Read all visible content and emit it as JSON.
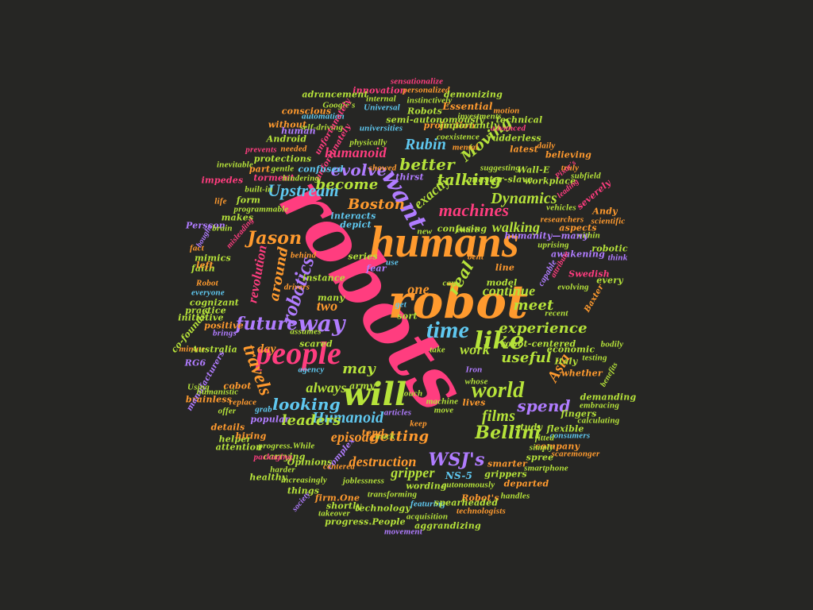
{
  "palette": {
    "background": "#262624",
    "pink": "#ff3d7f",
    "orange": "#ff9a2e",
    "green": "#b6e33a",
    "blue": "#5fc8f0",
    "violet": "#b07cff",
    "red": "#ff4f63"
  },
  "words": [
    {
      "text": "robots",
      "color": "pink"
    },
    {
      "text": "humans",
      "color": "orange"
    },
    {
      "text": "robot",
      "color": "orange"
    },
    {
      "text": "people",
      "color": "pink"
    },
    {
      "text": "will",
      "color": "green"
    },
    {
      "text": "time",
      "color": "blue"
    },
    {
      "text": "like",
      "color": "green"
    },
    {
      "text": "world",
      "color": "green"
    },
    {
      "text": "want",
      "color": "violet"
    },
    {
      "text": "machines",
      "color": "pink"
    },
    {
      "text": "way",
      "color": "violet"
    },
    {
      "text": "robotics",
      "color": "violet"
    },
    {
      "text": "future",
      "color": "violet"
    },
    {
      "text": "travels",
      "color": "orange"
    },
    {
      "text": "evolve",
      "color": "violet"
    },
    {
      "text": "Upstream",
      "color": "blue"
    },
    {
      "text": "Jason",
      "color": "orange"
    },
    {
      "text": "revolution",
      "color": "pink"
    },
    {
      "text": "around",
      "color": "orange"
    },
    {
      "text": "two",
      "color": "orange"
    },
    {
      "text": "Boston",
      "color": "orange"
    },
    {
      "text": "Dynamics",
      "color": "green"
    },
    {
      "text": "talking",
      "color": "green"
    },
    {
      "text": "exactly",
      "color": "green"
    },
    {
      "text": "better",
      "color": "green"
    },
    {
      "text": "Rubin",
      "color": "blue"
    },
    {
      "text": "Moving",
      "color": "green"
    },
    {
      "text": "humanoid",
      "color": "pink"
    },
    {
      "text": "become",
      "color": "green"
    },
    {
      "text": "walking",
      "color": "green"
    },
    {
      "text": "meet",
      "color": "green"
    },
    {
      "text": "continue",
      "color": "green"
    },
    {
      "text": "real",
      "color": "green"
    },
    {
      "text": "one",
      "color": "orange"
    },
    {
      "text": "experience",
      "color": "green"
    },
    {
      "text": "work",
      "color": "green"
    },
    {
      "text": "useful",
      "color": "green"
    },
    {
      "text": "Asia",
      "color": "orange"
    },
    {
      "text": "spend",
      "color": "violet"
    },
    {
      "text": "films",
      "color": "green"
    },
    {
      "text": "Bellini",
      "color": "green"
    },
    {
      "text": "always",
      "color": "green"
    },
    {
      "text": "looking",
      "color": "blue"
    },
    {
      "text": "Humanoid",
      "color": "blue"
    },
    {
      "text": "leaders",
      "color": "green"
    },
    {
      "text": "episode",
      "color": "orange"
    },
    {
      "text": "getting",
      "color": "orange"
    },
    {
      "text": "destruction",
      "color": "orange"
    },
    {
      "text": "WSJ's",
      "color": "violet"
    },
    {
      "text": "gripper",
      "color": "green"
    },
    {
      "text": "may",
      "color": "green"
    },
    {
      "text": "day",
      "color": "orange"
    },
    {
      "text": "NS-5",
      "color": "blue"
    },
    {
      "text": "sensationalize",
      "color": "pink"
    },
    {
      "text": "innovation",
      "color": "pink"
    },
    {
      "text": "personalized",
      "color": "orange"
    },
    {
      "text": "adrancement",
      "color": "green"
    },
    {
      "text": "internal",
      "color": "green"
    },
    {
      "text": "demonizing",
      "color": "green"
    },
    {
      "text": "instinctively",
      "color": "green"
    },
    {
      "text": "Essential",
      "color": "orange"
    },
    {
      "text": "motion",
      "color": "orange"
    },
    {
      "text": "conscious",
      "color": "orange"
    },
    {
      "text": "Universal",
      "color": "blue"
    },
    {
      "text": "Robots",
      "color": "green"
    },
    {
      "text": "Google's",
      "color": "green"
    },
    {
      "text": "semi-autonomously",
      "color": "green"
    },
    {
      "text": "investments",
      "color": "green"
    },
    {
      "text": "technical",
      "color": "green"
    },
    {
      "text": "automation",
      "color": "blue"
    },
    {
      "text": "projection",
      "color": "orange"
    },
    {
      "text": "advanced",
      "color": "pink"
    },
    {
      "text": "without",
      "color": "orange"
    },
    {
      "text": "universities",
      "color": "blue"
    },
    {
      "text": "importantly",
      "color": "green"
    },
    {
      "text": "self-driving",
      "color": "green"
    },
    {
      "text": "human",
      "color": "violet"
    },
    {
      "text": "coexistence",
      "color": "green"
    },
    {
      "text": "Android",
      "color": "green"
    },
    {
      "text": "mental",
      "color": "orange"
    },
    {
      "text": "rudderless",
      "color": "green"
    },
    {
      "text": "physically",
      "color": "green"
    },
    {
      "text": "latest",
      "color": "orange"
    },
    {
      "text": "daily",
      "color": "orange"
    },
    {
      "text": "believing",
      "color": "orange"
    },
    {
      "text": "needed",
      "color": "orange"
    },
    {
      "text": "unfortunately",
      "color": "pink"
    },
    {
      "text": "prevents",
      "color": "pink"
    },
    {
      "text": "protections",
      "color": "green"
    },
    {
      "text": "suggesting",
      "color": "green"
    },
    {
      "text": "master-slave",
      "color": "green"
    },
    {
      "text": "inevitable",
      "color": "green"
    },
    {
      "text": "part",
      "color": "orange"
    },
    {
      "text": "gentle",
      "color": "green"
    },
    {
      "text": "confused",
      "color": "blue"
    },
    {
      "text": "showed",
      "color": "orange"
    },
    {
      "text": "Wall-E",
      "color": "green"
    },
    {
      "text": "truly",
      "color": "orange"
    },
    {
      "text": "torment",
      "color": "pink"
    },
    {
      "text": "hindering",
      "color": "green"
    },
    {
      "text": "workplace",
      "color": "green"
    },
    {
      "text": "subfield",
      "color": "green"
    },
    {
      "text": "impedes",
      "color": "pink"
    },
    {
      "text": "built-in",
      "color": "green"
    },
    {
      "text": "thirst",
      "color": "violet"
    },
    {
      "text": "Pixar's",
      "color": "pink"
    },
    {
      "text": "severely",
      "color": "pink"
    },
    {
      "text": "life",
      "color": "orange"
    },
    {
      "text": "form",
      "color": "green"
    },
    {
      "text": "programmable",
      "color": "green"
    },
    {
      "text": "interacts",
      "color": "blue"
    },
    {
      "text": "vehicles",
      "color": "green"
    },
    {
      "text": "Andy",
      "color": "orange"
    },
    {
      "text": "scientific",
      "color": "orange"
    },
    {
      "text": "depict",
      "color": "blue"
    },
    {
      "text": "researchers",
      "color": "orange"
    },
    {
      "text": "aspects",
      "color": "orange"
    },
    {
      "text": "entire",
      "color": "green"
    },
    {
      "text": "confusing",
      "color": "green"
    },
    {
      "text": "within",
      "color": "green"
    },
    {
      "text": "humanity—many",
      "color": "violet"
    },
    {
      "text": "uprising",
      "color": "green"
    },
    {
      "text": "robotic",
      "color": "green"
    },
    {
      "text": "fact",
      "color": "orange"
    },
    {
      "text": "mimics",
      "color": "green"
    },
    {
      "text": "behind",
      "color": "orange"
    },
    {
      "text": "series",
      "color": "green"
    },
    {
      "text": "new",
      "color": "green"
    },
    {
      "text": "awakening",
      "color": "violet"
    },
    {
      "text": "think",
      "color": "violet"
    },
    {
      "text": "faith",
      "color": "green"
    },
    {
      "text": "use",
      "color": "blue"
    },
    {
      "text": "fear",
      "color": "violet"
    },
    {
      "text": "bent",
      "color": "orange"
    },
    {
      "text": "line",
      "color": "orange"
    },
    {
      "text": "attribute",
      "color": "pink"
    },
    {
      "text": "Swedish",
      "color": "pink"
    },
    {
      "text": "Robot",
      "color": "orange"
    },
    {
      "text": "instance",
      "color": "green"
    },
    {
      "text": "can",
      "color": "green"
    },
    {
      "text": "model",
      "color": "green"
    },
    {
      "text": "capable",
      "color": "violet"
    },
    {
      "text": "every",
      "color": "green"
    },
    {
      "text": "everyone",
      "color": "blue"
    },
    {
      "text": "cognizant",
      "color": "green"
    },
    {
      "text": "drivers",
      "color": "orange"
    },
    {
      "text": "many",
      "color": "green"
    },
    {
      "text": "evolving",
      "color": "green"
    },
    {
      "text": "practice",
      "color": "green"
    },
    {
      "text": "get",
      "color": "blue"
    },
    {
      "text": "sort",
      "color": "green"
    },
    {
      "text": "recent",
      "color": "green"
    },
    {
      "text": "initiative",
      "color": "green"
    },
    {
      "text": "brings",
      "color": "violet"
    },
    {
      "text": "positive",
      "color": "orange"
    },
    {
      "text": "assumes",
      "color": "green"
    },
    {
      "text": "robot-centered",
      "color": "green"
    },
    {
      "text": "minute",
      "color": "orange"
    },
    {
      "text": "scared",
      "color": "green"
    },
    {
      "text": "take",
      "color": "green"
    },
    {
      "text": "economic",
      "color": "green"
    },
    {
      "text": "bodily",
      "color": "green"
    },
    {
      "text": "Australia",
      "color": "green"
    },
    {
      "text": "agency",
      "color": "blue"
    },
    {
      "text": "Italy",
      "color": "green"
    },
    {
      "text": "testing",
      "color": "green"
    },
    {
      "text": "whether",
      "color": "orange"
    },
    {
      "text": "Iron",
      "color": "violet"
    },
    {
      "text": "army",
      "color": "green"
    },
    {
      "text": "whose",
      "color": "green"
    },
    {
      "text": "brainless",
      "color": "orange"
    },
    {
      "text": "replace",
      "color": "orange"
    },
    {
      "text": "manufacturers",
      "color": "violet"
    },
    {
      "text": "touch",
      "color": "green"
    },
    {
      "text": "demanding",
      "color": "green"
    },
    {
      "text": "embracing",
      "color": "green"
    },
    {
      "text": "details",
      "color": "orange"
    },
    {
      "text": "grab",
      "color": "blue"
    },
    {
      "text": "popular",
      "color": "violet"
    },
    {
      "text": "machine",
      "color": "green"
    },
    {
      "text": "lives",
      "color": "orange"
    },
    {
      "text": "move",
      "color": "green"
    },
    {
      "text": "fingers",
      "color": "green"
    },
    {
      "text": "calculating",
      "color": "green"
    },
    {
      "text": "flexible",
      "color": "green"
    },
    {
      "text": "offer",
      "color": "green"
    },
    {
      "text": "helper",
      "color": "green"
    },
    {
      "text": "articles",
      "color": "violet"
    },
    {
      "text": "hiring",
      "color": "orange"
    },
    {
      "text": "keep",
      "color": "orange"
    },
    {
      "text": "study",
      "color": "green"
    },
    {
      "text": "consumers",
      "color": "blue"
    },
    {
      "text": "attention",
      "color": "green"
    },
    {
      "text": "progress.While",
      "color": "green"
    },
    {
      "text": "carrying",
      "color": "green"
    },
    {
      "text": "truck",
      "color": "green"
    },
    {
      "text": "tend",
      "color": "orange"
    },
    {
      "text": "fitted",
      "color": "green"
    },
    {
      "text": "company",
      "color": "orange"
    },
    {
      "text": "packaging",
      "color": "pink"
    },
    {
      "text": "Opinions",
      "color": "green"
    },
    {
      "text": "simply",
      "color": "green"
    },
    {
      "text": "spree",
      "color": "green"
    },
    {
      "text": "scaremonger",
      "color": "orange"
    },
    {
      "text": "healthy",
      "color": "green"
    },
    {
      "text": "harder",
      "color": "green"
    },
    {
      "text": "complex",
      "color": "violet"
    },
    {
      "text": "centered",
      "color": "orange"
    },
    {
      "text": "smarter",
      "color": "orange"
    },
    {
      "text": "smartphone",
      "color": "green"
    },
    {
      "text": "grippers",
      "color": "green"
    },
    {
      "text": "increasingly",
      "color": "green"
    },
    {
      "text": "things",
      "color": "green"
    },
    {
      "text": "joblessness",
      "color": "green"
    },
    {
      "text": "wording",
      "color": "green"
    },
    {
      "text": "autonomously",
      "color": "green"
    },
    {
      "text": "departed",
      "color": "orange"
    },
    {
      "text": "society",
      "color": "violet"
    },
    {
      "text": "firm.One",
      "color": "orange"
    },
    {
      "text": "transforming",
      "color": "green"
    },
    {
      "text": "Robot's",
      "color": "orange"
    },
    {
      "text": "handles",
      "color": "green"
    },
    {
      "text": "shortly",
      "color": "green"
    },
    {
      "text": "featuring",
      "color": "blue"
    },
    {
      "text": "spearheaded",
      "color": "green"
    },
    {
      "text": "takeover",
      "color": "green"
    },
    {
      "text": "technology",
      "color": "green"
    },
    {
      "text": "technologists",
      "color": "orange"
    },
    {
      "text": "progress.People",
      "color": "green"
    },
    {
      "text": "acquisition",
      "color": "green"
    },
    {
      "text": "aggrandizing",
      "color": "green"
    },
    {
      "text": "movement",
      "color": "violet"
    },
    {
      "text": "cobot",
      "color": "orange"
    },
    {
      "text": "humanistic",
      "color": "green"
    },
    {
      "text": "Persson",
      "color": "violet"
    },
    {
      "text": "bought",
      "color": "violet"
    },
    {
      "text": "makes",
      "color": "green"
    },
    {
      "text": "leading",
      "color": "pink"
    },
    {
      "text": "left",
      "color": "orange"
    },
    {
      "text": "misleading",
      "color": "pink"
    },
    {
      "text": "Baxter",
      "color": "orange"
    },
    {
      "text": "brain",
      "color": "green"
    },
    {
      "text": "RG6",
      "color": "violet"
    },
    {
      "text": "Using",
      "color": "green"
    },
    {
      "text": "co-founder",
      "color": "green"
    },
    {
      "text": "benefits",
      "color": "green"
    },
    {
      "text": "unfortunately",
      "color": "pink"
    }
  ]
}
